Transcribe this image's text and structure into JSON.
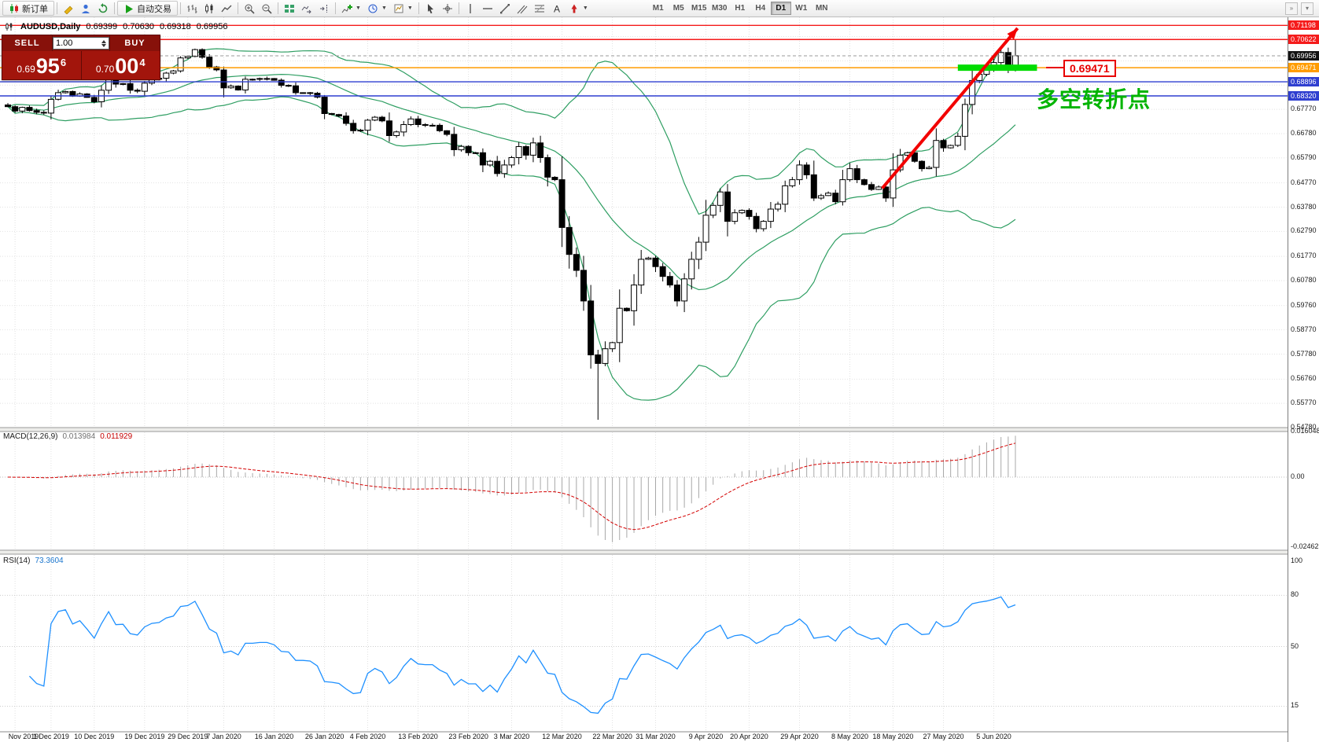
{
  "toolbar": {
    "new_order_label": "新订单",
    "autotrading_label": "自动交易",
    "timeframes": [
      "M1",
      "M5",
      "M15",
      "M30",
      "H1",
      "H4",
      "D1",
      "W1",
      "MN"
    ],
    "active_timeframe": "D1"
  },
  "chart_header": {
    "symbol_period": "AUDUSD,Daily",
    "open": "0.69399",
    "high": "0.70630",
    "low": "0.69318",
    "close": "0.69956"
  },
  "one_click": {
    "sell_label": "SELL",
    "buy_label": "BUY",
    "volume": "1.00",
    "sell_price": {
      "small": "0.69",
      "big": "95",
      "sup": "6"
    },
    "buy_price": {
      "small": "0.70",
      "big": "00",
      "sup": "4"
    }
  },
  "indicator_labels": {
    "macd_name": "MACD(12,26,9)",
    "macd_main": "0.013984",
    "macd_signal": "0.011929",
    "rsi_name": "RSI(14)",
    "rsi_value": "73.3604"
  },
  "annotations": {
    "note_text": "多空转折点",
    "price_callout": "0.69471"
  },
  "axes": {
    "price_labels": [
      "0.67770",
      "0.66780",
      "0.65790",
      "0.64770",
      "0.63780",
      "0.62790",
      "0.61770",
      "0.60780",
      "0.59760",
      "0.58770",
      "0.57780",
      "0.56760",
      "0.55770",
      "0.54780"
    ],
    "price_tags": [
      {
        "text": "0.71198",
        "bg": "#f51b1b",
        "fg": "#ffffff"
      },
      {
        "text": "0.70622",
        "bg": "#f51b1b",
        "fg": "#ffffff"
      },
      {
        "text": "0.69956",
        "bg": "#141414",
        "fg": "#ffffff"
      },
      {
        "text": "0.69471",
        "bg": "#ff9c00",
        "fg": "#ffffff"
      },
      {
        "text": "0.68896",
        "bg": "#2f3fd0",
        "fg": "#ffffff"
      },
      {
        "text": "0.68320",
        "bg": "#2f3fd0",
        "fg": "#ffffff"
      }
    ],
    "macd_labels": [
      {
        "text": "0.016048",
        "v": 0.016048
      },
      {
        "text": "0.00",
        "v": 0
      },
      {
        "text": "-0.024625",
        "v": -0.024625
      }
    ],
    "rsi_labels": [
      {
        "text": "100",
        "v": 100
      },
      {
        "text": "80",
        "v": 80
      },
      {
        "text": "50",
        "v": 50
      },
      {
        "text": "15",
        "v": 15
      }
    ],
    "time_labels": [
      {
        "text": "Nov 2019",
        "ci": 1
      },
      {
        "text": "1 Dec 2019",
        "ci": 6
      },
      {
        "text": "10 Dec 2019",
        "ci": 12
      },
      {
        "text": "19 Dec 2019",
        "ci": 19
      },
      {
        "text": "29 Dec 2019",
        "ci": 25
      },
      {
        "text": "7 Jan 2020",
        "ci": 30
      },
      {
        "text": "16 Jan 2020",
        "ci": 37
      },
      {
        "text": "26 Jan 2020",
        "ci": 44
      },
      {
        "text": "4 Feb 2020",
        "ci": 50
      },
      {
        "text": "13 Feb 2020",
        "ci": 57
      },
      {
        "text": "23 Feb 2020",
        "ci": 64
      },
      {
        "text": "3 Mar 2020",
        "ci": 70
      },
      {
        "text": "12 Mar 2020",
        "ci": 77
      },
      {
        "text": "22 Mar 2020",
        "ci": 84
      },
      {
        "text": "31 Mar 2020",
        "ci": 90
      },
      {
        "text": "9 Apr 2020",
        "ci": 97
      },
      {
        "text": "20 Apr 2020",
        "ci": 103
      },
      {
        "text": "29 Apr 2020",
        "ci": 110
      },
      {
        "text": "8 May 2020",
        "ci": 117
      },
      {
        "text": "18 May 2020",
        "ci": 123
      },
      {
        "text": "27 May 2020",
        "ci": 130
      },
      {
        "text": "5 Jun 2020",
        "ci": 137
      }
    ]
  },
  "chart_data": {
    "type": "candlestick",
    "symbol": "AUDUSD",
    "timeframe": "Daily",
    "price_range_visible": [
      0.5344,
      0.71528
    ],
    "closes": [
      0.6788,
      0.677,
      0.6785,
      0.6772,
      0.6765,
      0.6762,
      0.6818,
      0.6845,
      0.685,
      0.6831,
      0.684,
      0.6826,
      0.6808,
      0.6855,
      0.6915,
      0.688,
      0.6882,
      0.6855,
      0.6851,
      0.6884,
      0.69,
      0.6904,
      0.6925,
      0.6934,
      0.6987,
      0.6993,
      0.7021,
      0.699,
      0.695,
      0.6938,
      0.6865,
      0.6872,
      0.6856,
      0.69,
      0.69,
      0.6903,
      0.6903,
      0.6896,
      0.6875,
      0.6873,
      0.6845,
      0.6845,
      0.6843,
      0.6827,
      0.676,
      0.6756,
      0.675,
      0.672,
      0.669,
      0.6692,
      0.6733,
      0.6745,
      0.673,
      0.667,
      0.6685,
      0.6715,
      0.6738,
      0.6715,
      0.6712,
      0.6712,
      0.669,
      0.6675,
      0.6612,
      0.6626,
      0.66,
      0.66,
      0.655,
      0.6565,
      0.6515,
      0.655,
      0.658,
      0.6625,
      0.659,
      0.664,
      0.658,
      0.65,
      0.649,
      0.6295,
      0.6185,
      0.612,
      0.5995,
      0.5775,
      0.574,
      0.58,
      0.5825,
      0.5965,
      0.5955,
      0.606,
      0.6165,
      0.617,
      0.6135,
      0.6095,
      0.606,
      0.5995,
      0.6085,
      0.6165,
      0.6235,
      0.6345,
      0.6385,
      0.644,
      0.632,
      0.6355,
      0.6365,
      0.634,
      0.629,
      0.632,
      0.637,
      0.639,
      0.6465,
      0.649,
      0.655,
      0.651,
      0.6415,
      0.6425,
      0.6435,
      0.64,
      0.649,
      0.6535,
      0.649,
      0.647,
      0.645,
      0.646,
      0.6415,
      0.653,
      0.659,
      0.66,
      0.6565,
      0.6535,
      0.654,
      0.665,
      0.662,
      0.663,
      0.6667,
      0.6797,
      0.6895,
      0.692,
      0.6938,
      0.6968,
      0.7009,
      0.6957,
      0.69956
    ],
    "overrides": {
      "77": {
        "low": 0.6215
      },
      "82": {
        "low": 0.551
      },
      "140": {
        "open": 0.69399,
        "high": 0.7063,
        "low": 0.69318
      }
    },
    "indicators": {
      "bollinger": {
        "period": 20,
        "deviation": 2
      },
      "macd": {
        "fast": 12,
        "slow": 26,
        "signal": 9,
        "current_main": 0.013984,
        "current_signal": 0.011929,
        "axis_max": 0.016048,
        "axis_min": -0.024625
      },
      "rsi": {
        "period": 14,
        "current": 73.3604
      }
    },
    "horizontal_lines": [
      {
        "price": 0.71198,
        "color": "#f51b1b"
      },
      {
        "price": 0.70622,
        "color": "#f51b1b"
      },
      {
        "price": 0.69471,
        "color": "#ff9c00"
      },
      {
        "price": 0.68896,
        "color": "#2f3fd0"
      },
      {
        "price": 0.6832,
        "color": "#2f3fd0"
      }
    ],
    "current_price": 0.69956,
    "trend_arrow": {
      "ci1": 121.5,
      "price1": 0.6455,
      "ci2": 140.3,
      "price2": 0.7108,
      "color": "#f20000",
      "width": 4
    },
    "support_segment": {
      "ci1": 132,
      "ci2": 143,
      "price": 0.6947,
      "color": "#00dc00",
      "width": 8
    },
    "colors": {
      "candle_up": "#ffffff",
      "candle_down": "#000000",
      "wick": "#000000",
      "bollinger": "#2e9e62",
      "macd_hist": "#a8a8a8",
      "macd_signal": "#d40000",
      "rsi": "#1e90ff",
      "grid": "#e2e2e2"
    }
  }
}
